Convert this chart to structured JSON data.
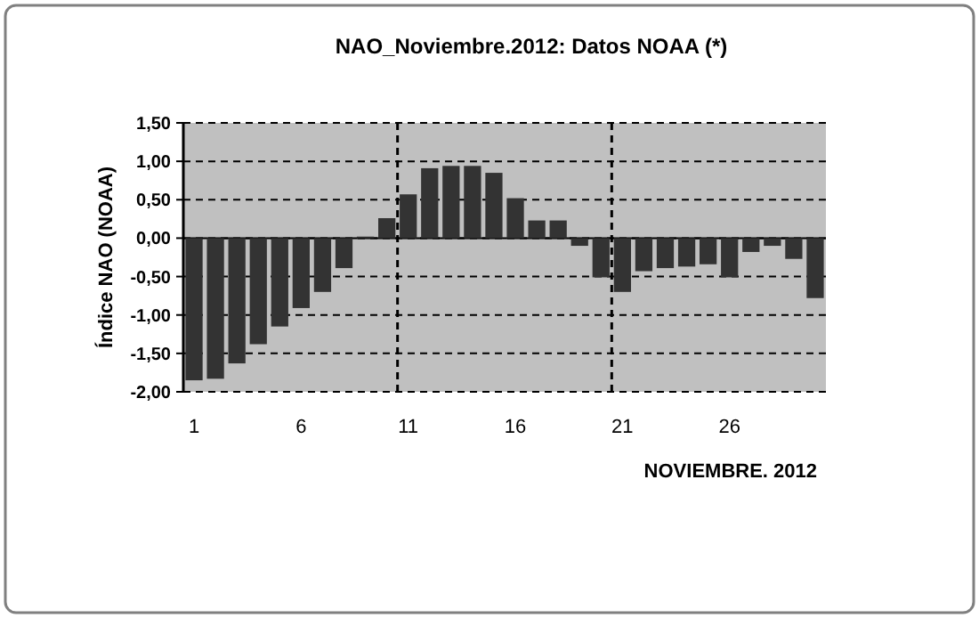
{
  "chart_data": {
    "type": "bar",
    "title": "NAO_Noviembre.2012: Datos NOAA (*)",
    "xlabel": "NOVIEMBRE. 2012",
    "ylabel": "Índice NAO (NOAA)",
    "x": [
      1,
      2,
      3,
      4,
      5,
      6,
      7,
      8,
      9,
      10,
      11,
      12,
      13,
      14,
      15,
      16,
      17,
      18,
      19,
      20,
      21,
      22,
      23,
      24,
      25,
      26,
      27,
      28,
      29,
      30
    ],
    "values": [
      -1.85,
      -1.83,
      -1.63,
      -1.38,
      -1.15,
      -0.91,
      -0.7,
      -0.39,
      0.02,
      0.26,
      0.57,
      0.91,
      0.94,
      0.94,
      0.85,
      0.52,
      0.23,
      0.23,
      -0.1,
      -0.51,
      -0.7,
      -0.43,
      -0.39,
      -0.37,
      -0.34,
      -0.51,
      -0.18,
      -0.1,
      -0.27,
      -0.78
    ],
    "color": "#333333",
    "xlim": [
      0.5,
      30.5
    ],
    "xticks": [
      1,
      6,
      11,
      16,
      21,
      26
    ],
    "ylim": [
      -2,
      1.5
    ],
    "yticks": [
      {
        "value": -2,
        "label": "-2,00"
      },
      {
        "value": -1.5,
        "label": "-1,50"
      },
      {
        "value": -1,
        "label": "-1,00"
      },
      {
        "value": -0.5,
        "label": "-0,50"
      },
      {
        "value": 0,
        "label": "0,00"
      },
      {
        "value": 0.5,
        "label": "0,50"
      },
      {
        "value": 1,
        "label": "1,00"
      },
      {
        "value": 1.5,
        "label": "1,50"
      }
    ],
    "grid": "y",
    "ref_lines": [
      {
        "axis": "x",
        "value": 10.5,
        "line_style": "dashed",
        "color": "#000000"
      },
      {
        "axis": "x",
        "value": 20.5,
        "line_style": "dashed",
        "color": "#000000"
      }
    ]
  }
}
